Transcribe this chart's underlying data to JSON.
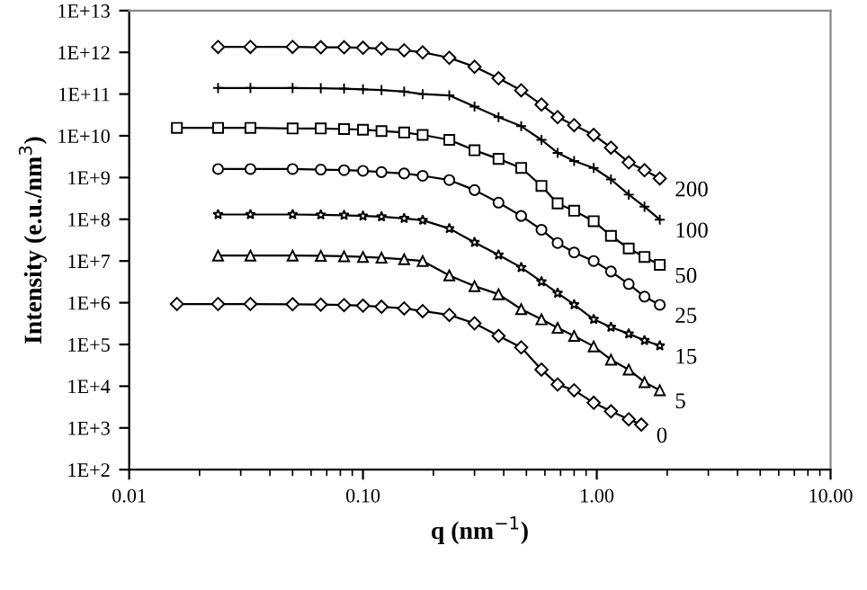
{
  "chart_data": {
    "type": "line",
    "xlabel": "q (nm$^{−1}$)",
    "ylabel": "Intensity (e.u./nm$^{3}$)",
    "log": "xy",
    "grid": false,
    "legend": false,
    "line_style": "solid",
    "xlim": [
      0.01,
      10
    ],
    "xticks": [
      0.01,
      {
        "value": 0.1,
        "label": "0.10"
      },
      {
        "value": 1,
        "label": "1.00"
      },
      {
        "value": 10,
        "label": "10.00"
      }
    ],
    "ylim": [
      100,
      10000000000000.0
    ],
    "yticks": [
      {
        "value": 100,
        "label": "1E+2"
      },
      {
        "value": 1000.0,
        "label": "1E+3"
      },
      {
        "value": 10000.0,
        "label": "1E+4"
      },
      {
        "value": 100000.0,
        "label": "1E+5"
      },
      {
        "value": 1000000.0,
        "label": "1E+6"
      },
      {
        "value": 10000000.0,
        "label": "1E+7"
      },
      {
        "value": 100000000.0,
        "label": "1E+8"
      },
      {
        "value": 1000000000.0,
        "label": "1E+9"
      },
      {
        "value": 10000000000.0,
        "label": "1E+10"
      },
      {
        "value": 100000000000.0,
        "label": "1E+11"
      },
      {
        "value": 1000000000000.0,
        "label": "1E+12"
      },
      {
        "value": 10000000000000.0,
        "label": "1E+13"
      }
    ],
    "series": [
      {
        "name": "200",
        "color": "#000000",
        "marker": "diamond",
        "x": [
          0.024,
          0.033,
          0.05,
          0.066,
          0.083,
          0.1,
          0.12,
          0.15,
          0.18,
          0.234,
          0.3,
          0.38,
          0.475,
          0.58,
          0.68,
          0.8,
          0.97,
          1.15,
          1.37,
          1.6,
          1.86
        ],
        "values": [
          1350000000000.0,
          1350000000000.0,
          1350000000000.0,
          1320000000000.0,
          1320000000000.0,
          1290000000000.0,
          1230000000000.0,
          1120000000000.0,
          1000000000000.0,
          740000000000.0,
          450000000000.0,
          240000000000.0,
          123000000000.0,
          56000000000.0,
          28000000000.0,
          18000000000.0,
          10500000000.0,
          5200000000.0,
          2300000000.0,
          1500000000.0,
          950000000.0
        ]
      },
      {
        "name": "100",
        "color": "#000000",
        "marker": "cross",
        "x": [
          0.024,
          0.033,
          0.05,
          0.066,
          0.083,
          0.1,
          0.12,
          0.15,
          0.18,
          0.234,
          0.3,
          0.38,
          0.475,
          0.58,
          0.68,
          0.8,
          0.97,
          1.15,
          1.37,
          1.6,
          1.86
        ],
        "values": [
          140000000000.0,
          140000000000.0,
          140000000000.0,
          138000000000.0,
          135000000000.0,
          130000000000.0,
          125000000000.0,
          115000000000.0,
          100000000000.0,
          93000000000.0,
          50000000000.0,
          28000000000.0,
          17000000000.0,
          8000000000.0,
          3900000000.0,
          2500000000.0,
          1700000000.0,
          900000000.0,
          390000000.0,
          200000000.0,
          98000000.0
        ]
      },
      {
        "name": "50",
        "color": "#000000",
        "marker": "square",
        "x": [
          0.016,
          0.024,
          0.033,
          0.05,
          0.066,
          0.083,
          0.1,
          0.12,
          0.15,
          0.18,
          0.234,
          0.3,
          0.38,
          0.475,
          0.58,
          0.68,
          0.8,
          0.97,
          1.15,
          1.37,
          1.6,
          1.86
        ],
        "values": [
          15500000000.0,
          15500000000.0,
          15500000000.0,
          15000000000.0,
          15000000000.0,
          14500000000.0,
          14000000000.0,
          13000000000.0,
          12000000000.0,
          10500000000.0,
          8000000000.0,
          4500000000.0,
          2800000000.0,
          1700000000.0,
          630000000.0,
          240000000.0,
          160000000.0,
          90000000.0,
          40000000.0,
          20000000.0,
          12500000.0,
          8100000.0
        ]
      },
      {
        "name": "25",
        "color": "#000000",
        "marker": "circle",
        "x": [
          0.024,
          0.033,
          0.05,
          0.066,
          0.083,
          0.1,
          0.12,
          0.15,
          0.18,
          0.234,
          0.3,
          0.38,
          0.475,
          0.58,
          0.68,
          0.8,
          0.97,
          1.15,
          1.37,
          1.6,
          1.86
        ],
        "values": [
          1600000000.0,
          1600000000.0,
          1600000000.0,
          1550000000.0,
          1500000000.0,
          1450000000.0,
          1350000000.0,
          1250000000.0,
          1100000000.0,
          870000000.0,
          500000000.0,
          250000000.0,
          120000000.0,
          56000000.0,
          27000000.0,
          16000000.0,
          10000000.0,
          5600000.0,
          2800000.0,
          1400000.0,
          890000.0
        ]
      },
      {
        "name": "15",
        "color": "#000000",
        "marker": "star",
        "x": [
          0.024,
          0.033,
          0.05,
          0.066,
          0.083,
          0.1,
          0.12,
          0.15,
          0.18,
          0.234,
          0.3,
          0.38,
          0.475,
          0.58,
          0.68,
          0.8,
          0.97,
          1.15,
          1.37,
          1.6,
          1.86
        ],
        "values": [
          130000000.0,
          130000000.0,
          130000000.0,
          128000000.0,
          125000000.0,
          120000000.0,
          115000000.0,
          105000000.0,
          95000000.0,
          60000000.0,
          28000000.0,
          14000000.0,
          7000000.0,
          3200000.0,
          1700000.0,
          900000.0,
          400000.0,
          260000.0,
          180000.0,
          125000.0,
          93000.0
        ]
      },
      {
        "name": "5",
        "color": "#000000",
        "marker": "triangle",
        "x": [
          0.024,
          0.033,
          0.05,
          0.066,
          0.083,
          0.1,
          0.12,
          0.15,
          0.18,
          0.234,
          0.3,
          0.38,
          0.475,
          0.58,
          0.68,
          0.8,
          0.97,
          1.15,
          1.37,
          1.6,
          1.86
        ],
        "values": [
          13500000.0,
          13500000.0,
          13500000.0,
          13300000.0,
          13000000.0,
          12500000.0,
          12000000.0,
          11000000.0,
          10000000.0,
          4500000.0,
          2500000.0,
          1600000.0,
          700000.0,
          400000.0,
          250000.0,
          160000.0,
          90000.0,
          43000.0,
          25000.0,
          12500.0,
          8000.0
        ]
      },
      {
        "name": "0",
        "color": "#000000",
        "marker": "diamond",
        "x": [
          0.016,
          0.024,
          0.033,
          0.05,
          0.066,
          0.083,
          0.1,
          0.12,
          0.15,
          0.18,
          0.234,
          0.3,
          0.38,
          0.475,
          0.58,
          0.68,
          0.8,
          0.97,
          1.15,
          1.37,
          1.55
        ],
        "values": [
          930000.0,
          930000.0,
          930000.0,
          920000.0,
          900000.0,
          880000.0,
          850000.0,
          800000.0,
          730000.0,
          630000.0,
          510000.0,
          320000.0,
          160000.0,
          85000.0,
          25000.0,
          11000.0,
          8000.0,
          4000.0,
          2500.0,
          1600.0,
          1200.0
        ]
      }
    ]
  }
}
